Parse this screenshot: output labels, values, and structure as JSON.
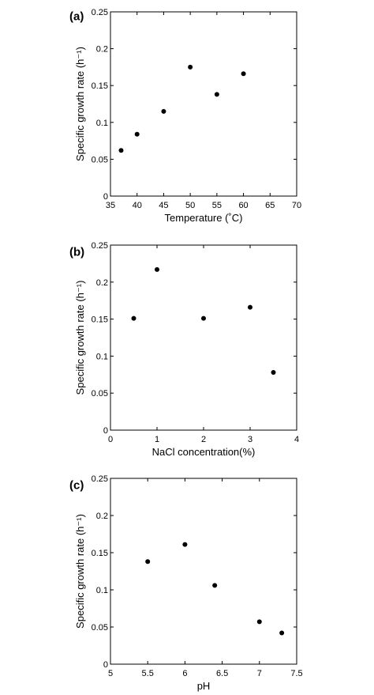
{
  "chart_data": [
    {
      "type": "scatter",
      "panel_label": "(a)",
      "xlabel": "Temperature (˚C)",
      "ylabel": "Specific growth rate (h⁻¹)",
      "xlim": [
        35,
        70
      ],
      "ylim": [
        0,
        0.25
      ],
      "xticks": [
        "35",
        "40",
        "45",
        "50",
        "55",
        "60",
        "65",
        "70"
      ],
      "yticks": [
        "0",
        "0.05",
        "0.1",
        "0.15",
        "0.2",
        "0.25"
      ],
      "points": [
        {
          "x": 37,
          "y": 0.062
        },
        {
          "x": 40,
          "y": 0.084
        },
        {
          "x": 45,
          "y": 0.115
        },
        {
          "x": 50,
          "y": 0.175
        },
        {
          "x": 55,
          "y": 0.138
        },
        {
          "x": 60,
          "y": 0.166
        }
      ]
    },
    {
      "type": "scatter",
      "panel_label": "(b)",
      "xlabel": "NaCl concentration(%)",
      "ylabel": "Specific growth rate (h⁻¹)",
      "xlim": [
        0,
        4
      ],
      "ylim": [
        0,
        0.25
      ],
      "xticks": [
        "0",
        "1",
        "2",
        "3",
        "4"
      ],
      "yticks": [
        "0",
        "0.05",
        "0.1",
        "0.15",
        "0.2",
        "0.25"
      ],
      "points": [
        {
          "x": 0.5,
          "y": 0.151
        },
        {
          "x": 1.0,
          "y": 0.217
        },
        {
          "x": 2.0,
          "y": 0.151
        },
        {
          "x": 3.0,
          "y": 0.166
        },
        {
          "x": 3.5,
          "y": 0.078
        }
      ]
    },
    {
      "type": "scatter",
      "panel_label": "(c)",
      "xlabel": "pH",
      "ylabel": "Specific growth rate (h⁻¹)",
      "xlim": [
        5,
        7.5
      ],
      "ylim": [
        0,
        0.25
      ],
      "xticks": [
        "5",
        "5.5",
        "6",
        "6.5",
        "7",
        "7.5"
      ],
      "yticks": [
        "0",
        "0.05",
        "0.1",
        "0.15",
        "0.2",
        "0.25"
      ],
      "points": [
        {
          "x": 5.5,
          "y": 0.138
        },
        {
          "x": 6.0,
          "y": 0.161
        },
        {
          "x": 6.4,
          "y": 0.106
        },
        {
          "x": 7.0,
          "y": 0.057
        },
        {
          "x": 7.3,
          "y": 0.042
        }
      ]
    }
  ]
}
